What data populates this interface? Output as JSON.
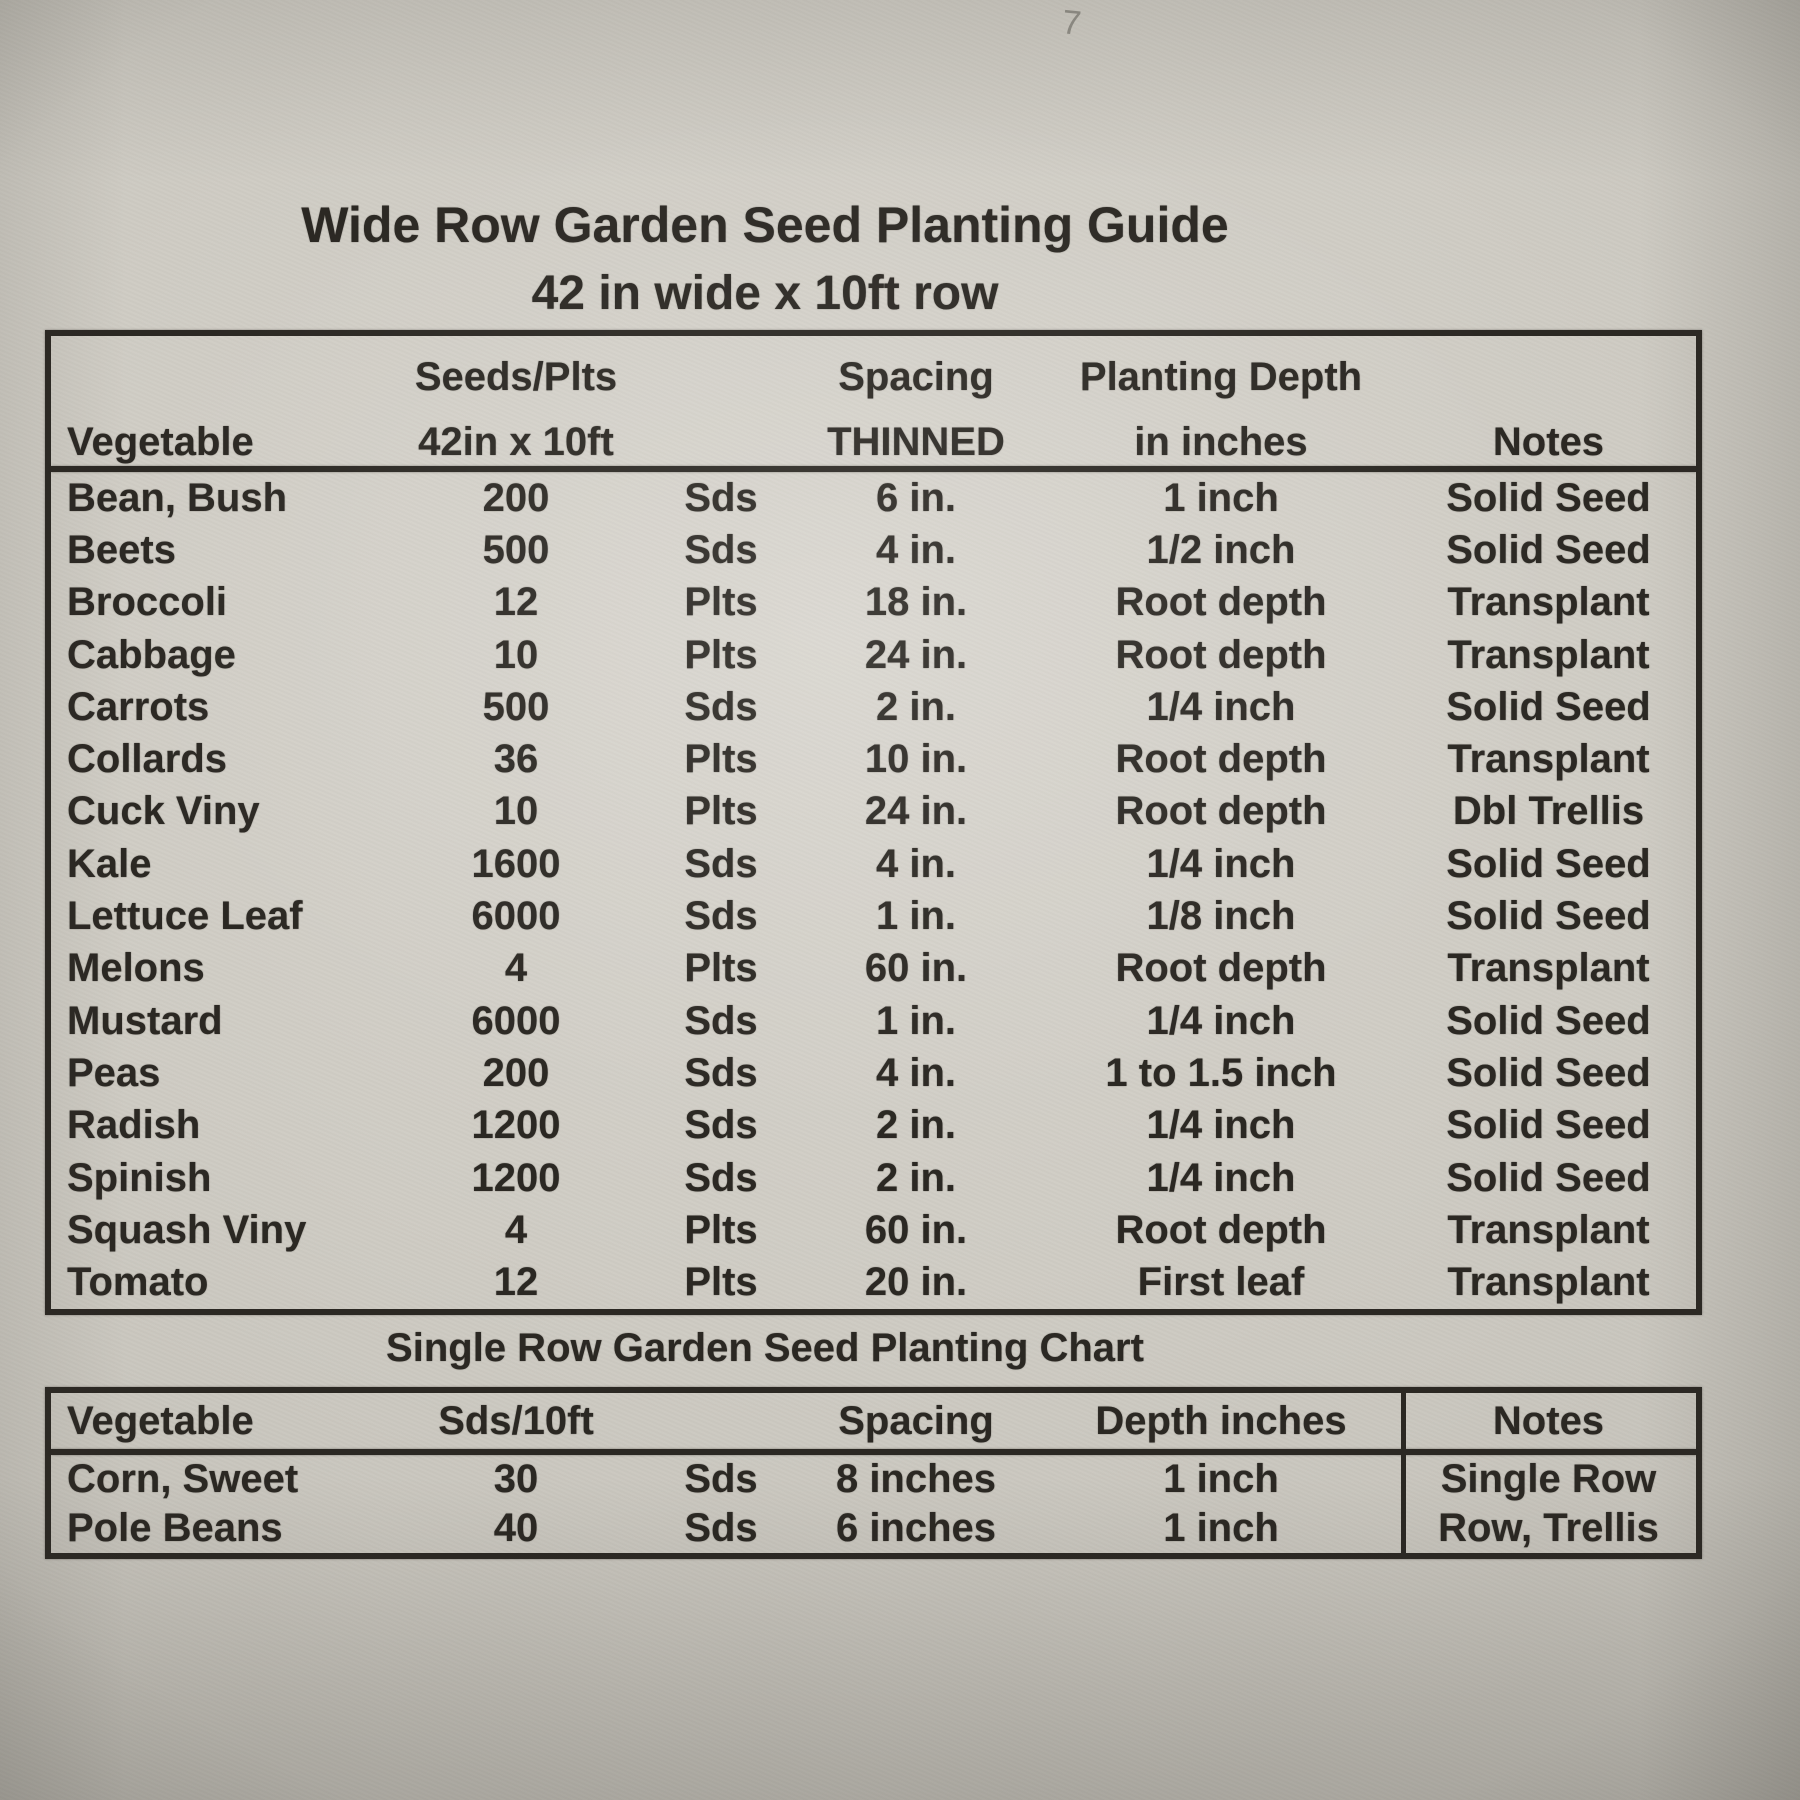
{
  "page": {
    "handwritten_mark": "7",
    "title": "Wide Row Garden Seed Planting Guide",
    "subtitle": "42 in wide x 10ft row"
  },
  "colors": {
    "paper": "#cfccc4",
    "ink": "#2b2823"
  },
  "wide_row_table": {
    "header": {
      "vegetable": "Vegetable",
      "seeds_line1": "Seeds/Plts",
      "seeds_line2": "42in x 10ft",
      "spacing_line1": "Spacing",
      "spacing_line2": "THINNED",
      "depth_line1": "Planting Depth",
      "depth_line2": "in inches",
      "notes": "Notes"
    },
    "rows": [
      {
        "vegetable": "Bean, Bush",
        "count": "200",
        "unit": "Sds",
        "spacing": "6 in.",
        "depth": "1 inch",
        "notes": "Solid Seed"
      },
      {
        "vegetable": "Beets",
        "count": "500",
        "unit": "Sds",
        "spacing": "4 in.",
        "depth": "1/2 inch",
        "notes": "Solid Seed"
      },
      {
        "vegetable": "Broccoli",
        "count": "12",
        "unit": "Plts",
        "spacing": "18 in.",
        "depth": "Root depth",
        "notes": "Transplant"
      },
      {
        "vegetable": "Cabbage",
        "count": "10",
        "unit": "Plts",
        "spacing": "24 in.",
        "depth": "Root depth",
        "notes": "Transplant"
      },
      {
        "vegetable": "Carrots",
        "count": "500",
        "unit": "Sds",
        "spacing": "2 in.",
        "depth": "1/4 inch",
        "notes": "Solid Seed"
      },
      {
        "vegetable": "Collards",
        "count": "36",
        "unit": "Plts",
        "spacing": "10 in.",
        "depth": "Root depth",
        "notes": "Transplant"
      },
      {
        "vegetable": "Cuck Viny",
        "count": "10",
        "unit": "Plts",
        "spacing": "24 in.",
        "depth": "Root depth",
        "notes": "Dbl Trellis"
      },
      {
        "vegetable": "Kale",
        "count": "1600",
        "unit": "Sds",
        "spacing": "4 in.",
        "depth": "1/4 inch",
        "notes": "Solid Seed"
      },
      {
        "vegetable": "Lettuce Leaf",
        "count": "6000",
        "unit": "Sds",
        "spacing": "1 in.",
        "depth": "1/8 inch",
        "notes": "Solid Seed"
      },
      {
        "vegetable": "Melons",
        "count": "4",
        "unit": "Plts",
        "spacing": "60 in.",
        "depth": "Root depth",
        "notes": "Transplant"
      },
      {
        "vegetable": "Mustard",
        "count": "6000",
        "unit": "Sds",
        "spacing": "1 in.",
        "depth": "1/4 inch",
        "notes": "Solid Seed"
      },
      {
        "vegetable": "Peas",
        "count": "200",
        "unit": "Sds",
        "spacing": "4 in.",
        "depth": "1 to 1.5 inch",
        "notes": "Solid Seed"
      },
      {
        "vegetable": "Radish",
        "count": "1200",
        "unit": "Sds",
        "spacing": "2 in.",
        "depth": "1/4 inch",
        "notes": "Solid Seed"
      },
      {
        "vegetable": "Spinish",
        "count": "1200",
        "unit": "Sds",
        "spacing": "2 in.",
        "depth": "1/4 inch",
        "notes": "Solid Seed"
      },
      {
        "vegetable": "Squash Viny",
        "count": "4",
        "unit": "Plts",
        "spacing": "60 in.",
        "depth": "Root depth",
        "notes": "Transplant"
      },
      {
        "vegetable": "Tomato",
        "count": "12",
        "unit": "Plts",
        "spacing": "20 in.",
        "depth": "First leaf",
        "notes": "Transplant"
      }
    ]
  },
  "single_row_table": {
    "title": "Single Row Garden Seed Planting Chart",
    "header": {
      "vegetable": "Vegetable",
      "seeds": "Sds/10ft",
      "spacing": "Spacing",
      "depth": "Depth inches",
      "notes": "Notes"
    },
    "rows": [
      {
        "vegetable": "Corn, Sweet",
        "count": "30",
        "unit": "Sds",
        "spacing": "8 inches",
        "depth": "1 inch",
        "notes": "Single Row"
      },
      {
        "vegetable": "Pole Beans",
        "count": "40",
        "unit": "Sds",
        "spacing": "6 inches",
        "depth": "1 inch",
        "notes": "Row, Trellis"
      }
    ]
  }
}
